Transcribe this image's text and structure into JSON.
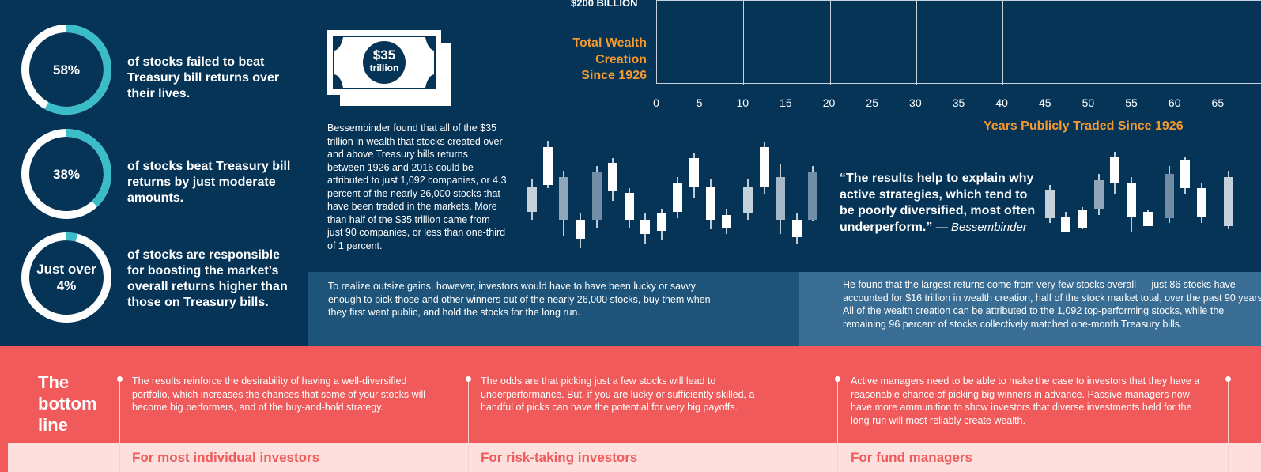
{
  "colors": {
    "navy": "#063457",
    "teal": "#3bbdc9",
    "orange": "#f29a30",
    "coral": "#f05a5a",
    "pale_coral": "#fde0dd"
  },
  "stats": [
    {
      "label": "58%",
      "fraction": 0.58,
      "text": "of stocks failed to beat Treasury bill returns over their lives."
    },
    {
      "label": "38%",
      "fraction": 0.38,
      "text": "of stocks beat Treasury bill returns by just moderate amounts."
    },
    {
      "label": "Just over 4%",
      "fraction": 0.04,
      "text": "of stocks are responsible for boosting the market’s overall returns higher than those on Treasury bills."
    }
  ],
  "bill": {
    "amount": "$35",
    "unit": "trillion",
    "icon": "dollar-bill-icon"
  },
  "bessembinder_text": "Bessembinder found that all of the $35 trillion in wealth that stocks created over and above Treasury bills returns between 1926 and 2016 could be attributed to just 1,092 companies, or 4.3 percent of the nearly 26,000 stocks that have been traded in the markets. More than half of the $35 trillion came from just 90 companies, or less than one-third of 1 percent.",
  "chart_data": {
    "type": "line",
    "title": "",
    "ylabel": "Total Wealth Creation Since 1926",
    "y_tick_label": "$200 BILLION",
    "xlabel": "Years Publicly Traded Since 1926",
    "x_ticks": [
      "0",
      "5",
      "10",
      "15",
      "20",
      "25",
      "30",
      "35",
      "40",
      "45",
      "50",
      "55",
      "60",
      "65"
    ],
    "xlim": [
      0,
      65
    ],
    "grid": true,
    "series": []
  },
  "quote": {
    "text": "“The results help to explain why active strategies, which tend to be poorly diversified, most often underperform.”",
    "attribution": "— Bessembinder"
  },
  "band_left": "To realize outsize gains, however, investors would have to have been lucky or savvy enough to pick those and other winners out of the nearly 26,000 stocks, buy them when they first went public, and hold the stocks for the long run.",
  "band_right": "He found that the largest returns come from very few stocks overall — just 86 stocks have accounted for $16 trillion in wealth creation, half of the stock market total, over the past 90 years. All of the wealth creation can be attributed to the 1,092 top-performing stocks, while the remaining 96 percent of stocks collectively matched one-month Treasury bills.",
  "bottom_line": {
    "title_lines": [
      "The",
      "bottom",
      "line"
    ],
    "columns": [
      {
        "text": "The results reinforce the desirability of having a well-diversified portfolio, which increases the chances that some of your stocks will become big performers, and of the buy-and-hold strategy.",
        "heading": "For most individual investors"
      },
      {
        "text": "The odds are that picking just a few stocks will lead to underperformance. But, if you are lucky or sufficiently skilled, a handful of picks can have the potential for very big payoffs.",
        "heading": "For risk-taking investors"
      },
      {
        "text": "Active managers need to be able to make the case to investors that they have a reasonable chance of picking big winners in advance. Passive managers now have more ammunition to show investors that diverse investments held for the long run will most reliably create wealth.",
        "heading": "For fund managers"
      }
    ]
  }
}
